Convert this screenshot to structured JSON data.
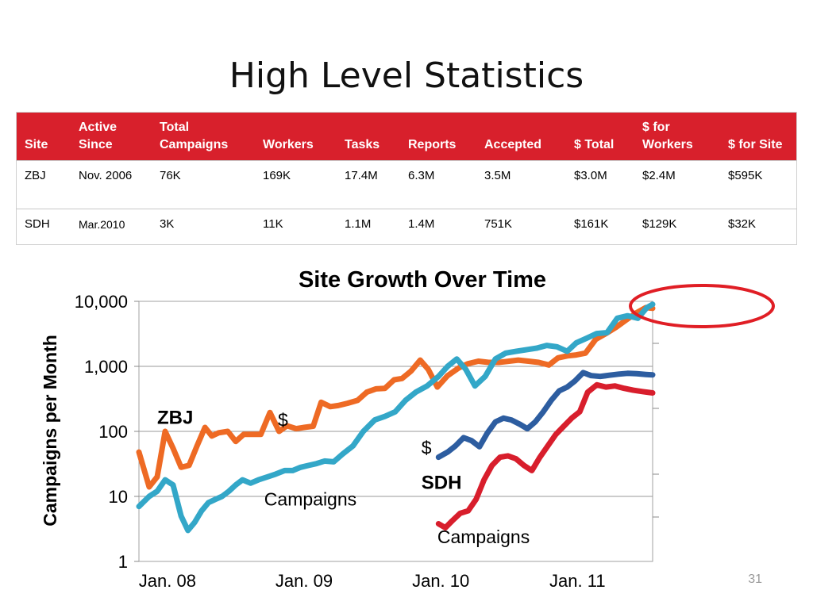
{
  "title": "High Level Statistics",
  "table": {
    "headers": [
      "Site",
      "Active Since",
      "Total Campaigns",
      "Workers",
      "Tasks",
      "Reports",
      "Accepted",
      "$ Total",
      "$ for Workers",
      "$ for Site"
    ],
    "rows": [
      [
        "ZBJ",
        "Nov. 2006",
        "76K",
        "169K",
        "17.4M",
        "6.3M",
        "3.5M",
        "$3.0M",
        "$2.4M",
        "$595K"
      ],
      [
        "SDH",
        "Mar.2010",
        "3K",
        "11K",
        "1.1M",
        "1.4M",
        "751K",
        "$161K",
        "$129K",
        "$32K"
      ]
    ]
  },
  "page_number": "31",
  "colors": {
    "header_red": "#d8202c",
    "zbj_campaigns": "#33a7c8",
    "zbj_dollars": "#ee6a24",
    "sdh_campaigns": "#d81e2c",
    "sdh_dollars": "#2d5da0",
    "highlight_circle": "#e01e25"
  },
  "chart_data": {
    "type": "line",
    "title": "Site Growth Over Time",
    "ylabel": "Campaigns per Month",
    "xlabel": "",
    "yscale": "log",
    "ylim": [
      1,
      10000
    ],
    "yticks": [
      "1",
      "10",
      "100",
      "1,000",
      "10,000"
    ],
    "xticks": [
      "Jan. 08",
      "Jan. 09",
      "Jan. 10",
      "Jan. 11"
    ],
    "xtick_positions": [
      0,
      12,
      24,
      36
    ],
    "xlim": [
      -2.5,
      42.6
    ],
    "grid": true,
    "annotations": [
      {
        "text": "ZBJ",
        "bold": true,
        "x": -0.9,
        "y": 130
      },
      {
        "text": "$",
        "bold": false,
        "x": 9.7,
        "y": 120
      },
      {
        "text": "Campaigns",
        "bold": false,
        "x": 8.5,
        "y": 7.2
      },
      {
        "text": "$",
        "bold": false,
        "x": 22.3,
        "y": 45
      },
      {
        "text": "SDH",
        "bold": true,
        "x": 22.3,
        "y": 13
      },
      {
        "text": "Campaigns",
        "bold": false,
        "x": 23.7,
        "y": 1.9
      }
    ],
    "series": [
      {
        "name": "",
        "color_key": "zbj_dollars",
        "x": [
          -2.5,
          -1.6,
          -0.9,
          -0.2,
          0.5,
          1.2,
          1.9,
          2.6,
          3.3,
          3.9,
          4.5,
          5.3,
          6.0,
          6.7,
          7.4,
          8.2,
          9.0,
          9.8,
          10.5,
          11.3,
          12.0,
          12.8,
          13.5,
          14.3,
          15.0,
          15.8,
          16.7,
          17.5,
          18.3,
          19.1,
          19.9,
          20.6,
          21.4,
          22.2,
          22.9,
          23.7,
          24.6,
          25.6,
          26.4,
          27.3,
          28.2,
          29.1,
          30.0,
          30.8,
          31.7,
          32.6,
          33.5,
          34.3,
          35.1,
          35.9,
          36.7,
          37.6,
          38.5,
          39.4,
          40.3,
          41.2,
          42.0,
          42.6
        ],
        "y": [
          48,
          14,
          20,
          100,
          55,
          28,
          30,
          60,
          115,
          85,
          95,
          100,
          70,
          90,
          90,
          90,
          195,
          100,
          122,
          110,
          115,
          120,
          280,
          240,
          250,
          270,
          300,
          400,
          450,
          460,
          620,
          650,
          850,
          1250,
          900,
          480,
          720,
          950,
          1100,
          1200,
          1150,
          1150,
          1200,
          1250,
          1200,
          1150,
          1050,
          1350,
          1450,
          1500,
          1600,
          2600,
          3200,
          4000,
          5200,
          6700,
          8000,
          7800
        ]
      },
      {
        "name": "",
        "color_key": "zbj_campaigns",
        "x": [
          -2.5,
          -1.6,
          -0.9,
          -0.2,
          0.5,
          1.2,
          1.8,
          2.4,
          3.0,
          3.6,
          4.2,
          4.8,
          5.4,
          6.0,
          6.6,
          7.3,
          8.0,
          8.8,
          9.5,
          10.3,
          11.0,
          11.7,
          12.4,
          13.1,
          13.8,
          14.6,
          15.4,
          16.3,
          17.2,
          18.2,
          19.1,
          20.0,
          20.9,
          21.8,
          22.8,
          23.8,
          24.6,
          25.4,
          26.2,
          27.0,
          27.9,
          28.8,
          29.7,
          30.6,
          31.5,
          32.4,
          33.3,
          34.2,
          35.1,
          35.9,
          36.8,
          37.7,
          38.6,
          39.5,
          40.4,
          41.3,
          42.1,
          42.6
        ],
        "y": [
          7,
          10,
          12,
          18,
          15,
          5,
          3,
          4,
          6,
          8,
          9,
          10,
          12,
          15,
          18,
          16,
          18,
          20,
          22,
          25,
          25,
          28,
          30,
          32,
          35,
          34,
          45,
          60,
          100,
          150,
          170,
          200,
          300,
          400,
          500,
          700,
          1000,
          1300,
          900,
          500,
          700,
          1300,
          1600,
          1700,
          1800,
          1900,
          2100,
          2000,
          1700,
          2300,
          2700,
          3200,
          3300,
          5500,
          6000,
          5500,
          8000,
          9000
        ]
      },
      {
        "name": "",
        "color_key": "sdh_dollars",
        "x": [
          23.8,
          24.6,
          25.3,
          26.0,
          26.7,
          27.4,
          28.1,
          28.8,
          29.5,
          30.2,
          30.9,
          31.6,
          32.3,
          33.0,
          33.7,
          34.4,
          35.1,
          35.8,
          36.5,
          37.2,
          38.0,
          38.8,
          39.6,
          40.4,
          41.2,
          42.0,
          42.6
        ],
        "y": [
          40,
          48,
          60,
          80,
          72,
          58,
          95,
          140,
          160,
          150,
          130,
          110,
          140,
          200,
          300,
          420,
          480,
          600,
          800,
          720,
          700,
          730,
          760,
          780,
          770,
          750,
          740
        ]
      },
      {
        "name": "",
        "color_key": "sdh_campaigns",
        "x": [
          23.8,
          24.4,
          25.0,
          25.7,
          26.4,
          27.1,
          27.8,
          28.5,
          29.2,
          29.9,
          30.6,
          31.3,
          32.0,
          32.7,
          33.4,
          34.1,
          34.8,
          35.5,
          36.2,
          36.9,
          37.7,
          38.5,
          39.3,
          40.1,
          40.9,
          41.7,
          42.6
        ],
        "y": [
          3.8,
          3.3,
          4.2,
          5.5,
          6.0,
          9,
          18,
          30,
          40,
          42,
          38,
          30,
          25,
          40,
          60,
          90,
          120,
          160,
          200,
          400,
          520,
          480,
          500,
          460,
          430,
          410,
          390
        ]
      }
    ]
  }
}
